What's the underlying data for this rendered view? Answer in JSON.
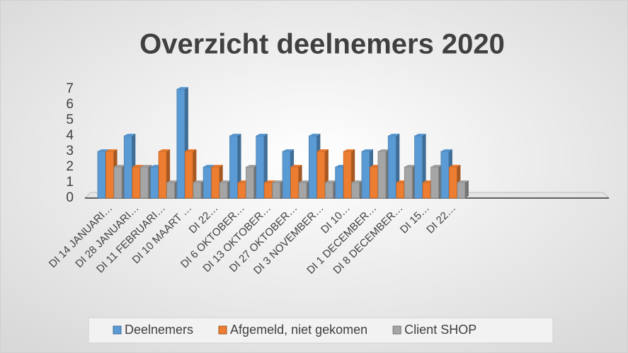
{
  "chart_data": {
    "type": "bar3d",
    "title": "Overzicht deelnemers 2020",
    "categories": [
      "DI 14 JANUARI…",
      "DI 28 JANUARI…",
      "DI 11 FEBRUARI…",
      "DI 10 MAART …",
      "DI 22…",
      "DI 6 OKTOBER…",
      "DI 13 OKTOBER…",
      "DI 27 OKTOBER…",
      "DI 3 NOVEMBER…",
      "DI 10…",
      "DI 1 DECEMBER…",
      "DI 8 DECEMBER…",
      "DI 15…",
      "DI 22…"
    ],
    "series": [
      {
        "name": "Deelnemers",
        "color": "#5b9bd5",
        "values": [
          3,
          4,
          2,
          7,
          2,
          4,
          4,
          3,
          4,
          2,
          3,
          4,
          4,
          3
        ]
      },
      {
        "name": "Afgemeld, niet gekomen",
        "color": "#ed7d31",
        "values": [
          3,
          2,
          3,
          3,
          2,
          1,
          1,
          2,
          3,
          3,
          2,
          1,
          1,
          2
        ]
      },
      {
        "name": "Client SHOP",
        "color": "#a5a5a5",
        "values": [
          2,
          2,
          1,
          1,
          1,
          2,
          1,
          1,
          1,
          1,
          3,
          2,
          2,
          1
        ]
      }
    ],
    "ylim": [
      0,
      7
    ],
    "yticks": [
      0,
      1,
      2,
      3,
      4,
      5,
      6,
      7
    ],
    "legend": "bottom"
  }
}
